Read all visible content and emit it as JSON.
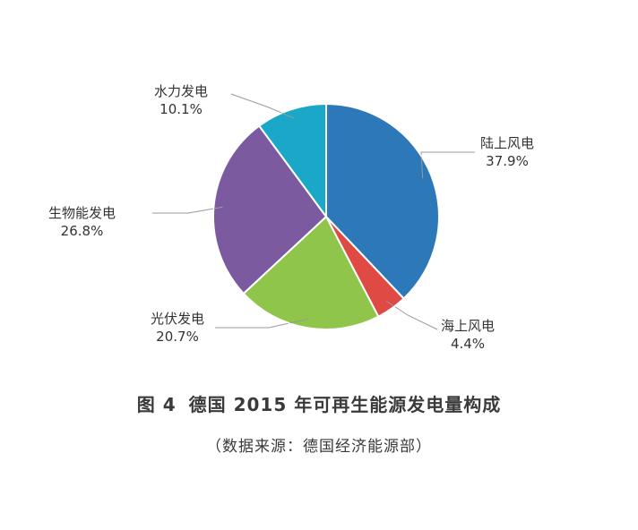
{
  "chart_data": {
    "type": "pie",
    "slices": [
      {
        "label": "陆上风电",
        "value": 37.9,
        "value_label": "37.9%",
        "color": "#2d78b8"
      },
      {
        "label": "海上风电",
        "value": 4.4,
        "value_label": "4.4%",
        "color": "#e04a45"
      },
      {
        "label": "光伏发电",
        "value": 20.7,
        "value_label": "20.7%",
        "color": "#8fc54a"
      },
      {
        "label": "生物能发电",
        "value": 26.8,
        "value_label": "26.8%",
        "color": "#7b5aa0"
      },
      {
        "label": "水力发电",
        "value": 10.1,
        "value_label": "10.1%",
        "color": "#1ba8c8"
      }
    ],
    "start_angle_deg": 0,
    "direction": "clockwise",
    "legend": "none"
  },
  "caption": {
    "figure_number": "图 4",
    "title": "德国 2015 年可再生能源发电量构成",
    "source": "（数据来源：德国经济能源部）"
  }
}
